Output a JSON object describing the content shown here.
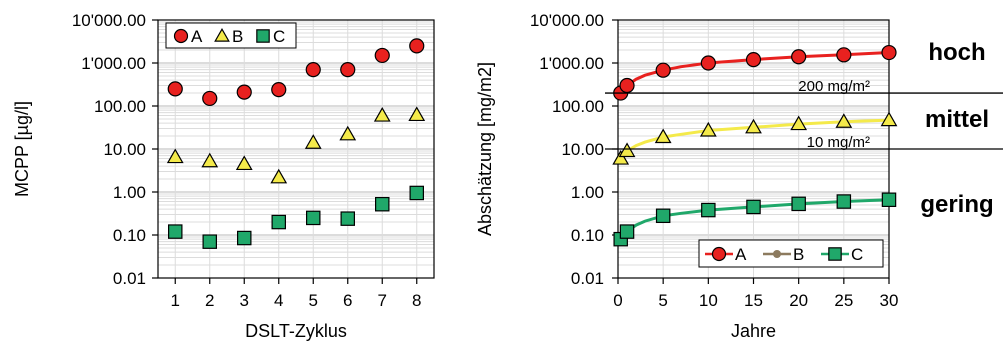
{
  "colors": {
    "A": "#e8211f",
    "B": "#f4ea4a",
    "B_line": "#8c7a5e",
    "C": "#20a86a"
  },
  "chart_data": [
    {
      "type": "scatter",
      "xlabel": "DSLT-Zyklus",
      "ylabel": "MCPP [µg/l]",
      "yscale": "log",
      "ylim": [
        0.01,
        10000
      ],
      "xlim": [
        0.5,
        8.5
      ],
      "x_ticks": [
        "1",
        "2",
        "3",
        "4",
        "5",
        "6",
        "7",
        "8"
      ],
      "y_ticks": [
        "10'000.00",
        "1'000.00",
        "100.00",
        "10.00",
        "1.00",
        "0.10",
        "0.01"
      ],
      "grid": true,
      "legend": "top-left",
      "x": [
        1,
        2,
        3,
        4,
        5,
        6,
        7,
        8
      ],
      "series": [
        {
          "name": "A",
          "marker": "circle",
          "values": [
            250,
            150,
            210,
            240,
            700,
            700,
            1500,
            2500
          ]
        },
        {
          "name": "B",
          "marker": "triangle",
          "values": [
            6.5,
            5.2,
            4.5,
            2.2,
            14,
            22,
            60,
            62
          ]
        },
        {
          "name": "C",
          "marker": "square",
          "values": [
            0.12,
            0.07,
            0.085,
            0.2,
            0.25,
            0.24,
            0.52,
            0.95
          ]
        }
      ]
    },
    {
      "type": "line",
      "xlabel": "Jahre",
      "ylabel": "Abschätzung [mg/m2]",
      "yscale": "log",
      "ylim": [
        0.01,
        10000
      ],
      "xlim": [
        0,
        30
      ],
      "x_ticks": [
        "0",
        "5",
        "10",
        "15",
        "20",
        "25",
        "30"
      ],
      "y_ticks": [
        "10'000.00",
        "1'000.00",
        "100.00",
        "10.00",
        "1.00",
        "0.10",
        "0.01"
      ],
      "grid": true,
      "legend": "bottom-right",
      "series": [
        {
          "name": "A",
          "marker": "circle",
          "curve": {
            "x": [
              0.3,
              0.5,
              1,
              2,
              3,
              5,
              7,
              10,
              15,
              20,
              25,
              30
            ],
            "y": [
              200,
              240,
              300,
              420,
              520,
              680,
              820,
              1000,
              1200,
              1400,
              1550,
              1750
            ]
          },
          "points": {
            "x": [
              0.3,
              1,
              5,
              10,
              15,
              20,
              25,
              30
            ],
            "y": [
              200,
              300,
              680,
              1000,
              1200,
              1400,
              1550,
              1750
            ]
          }
        },
        {
          "name": "B",
          "marker": "triangle",
          "curve": {
            "x": [
              0.3,
              0.5,
              1,
              2,
              3,
              5,
              7,
              10,
              15,
              20,
              25,
              30
            ],
            "y": [
              6,
              7,
              9,
              12,
              14.5,
              19,
              22,
              27,
              32,
              38,
              43,
              47
            ]
          },
          "points": {
            "x": [
              0.3,
              1,
              5,
              10,
              15,
              20,
              25,
              30
            ],
            "y": [
              6,
              9,
              19,
              27,
              32,
              38,
              43,
              47
            ]
          }
        },
        {
          "name": "C",
          "marker": "square",
          "curve": {
            "x": [
              0.3,
              0.5,
              1,
              2,
              3,
              5,
              7,
              10,
              15,
              20,
              25,
              30
            ],
            "y": [
              0.08,
              0.095,
              0.12,
              0.17,
              0.21,
              0.28,
              0.32,
              0.38,
              0.45,
              0.53,
              0.6,
              0.66
            ]
          },
          "points": {
            "x": [
              0.3,
              1,
              5,
              10,
              15,
              20,
              25,
              30
            ],
            "y": [
              0.08,
              0.12,
              0.28,
              0.38,
              0.45,
              0.53,
              0.6,
              0.66
            ]
          }
        }
      ],
      "thresholds": [
        {
          "value": 200,
          "label": "200 mg/m²"
        },
        {
          "value": 10,
          "label": "10 mg/m²"
        }
      ],
      "band_labels": [
        "hoch",
        "mittel",
        "gering"
      ]
    }
  ]
}
